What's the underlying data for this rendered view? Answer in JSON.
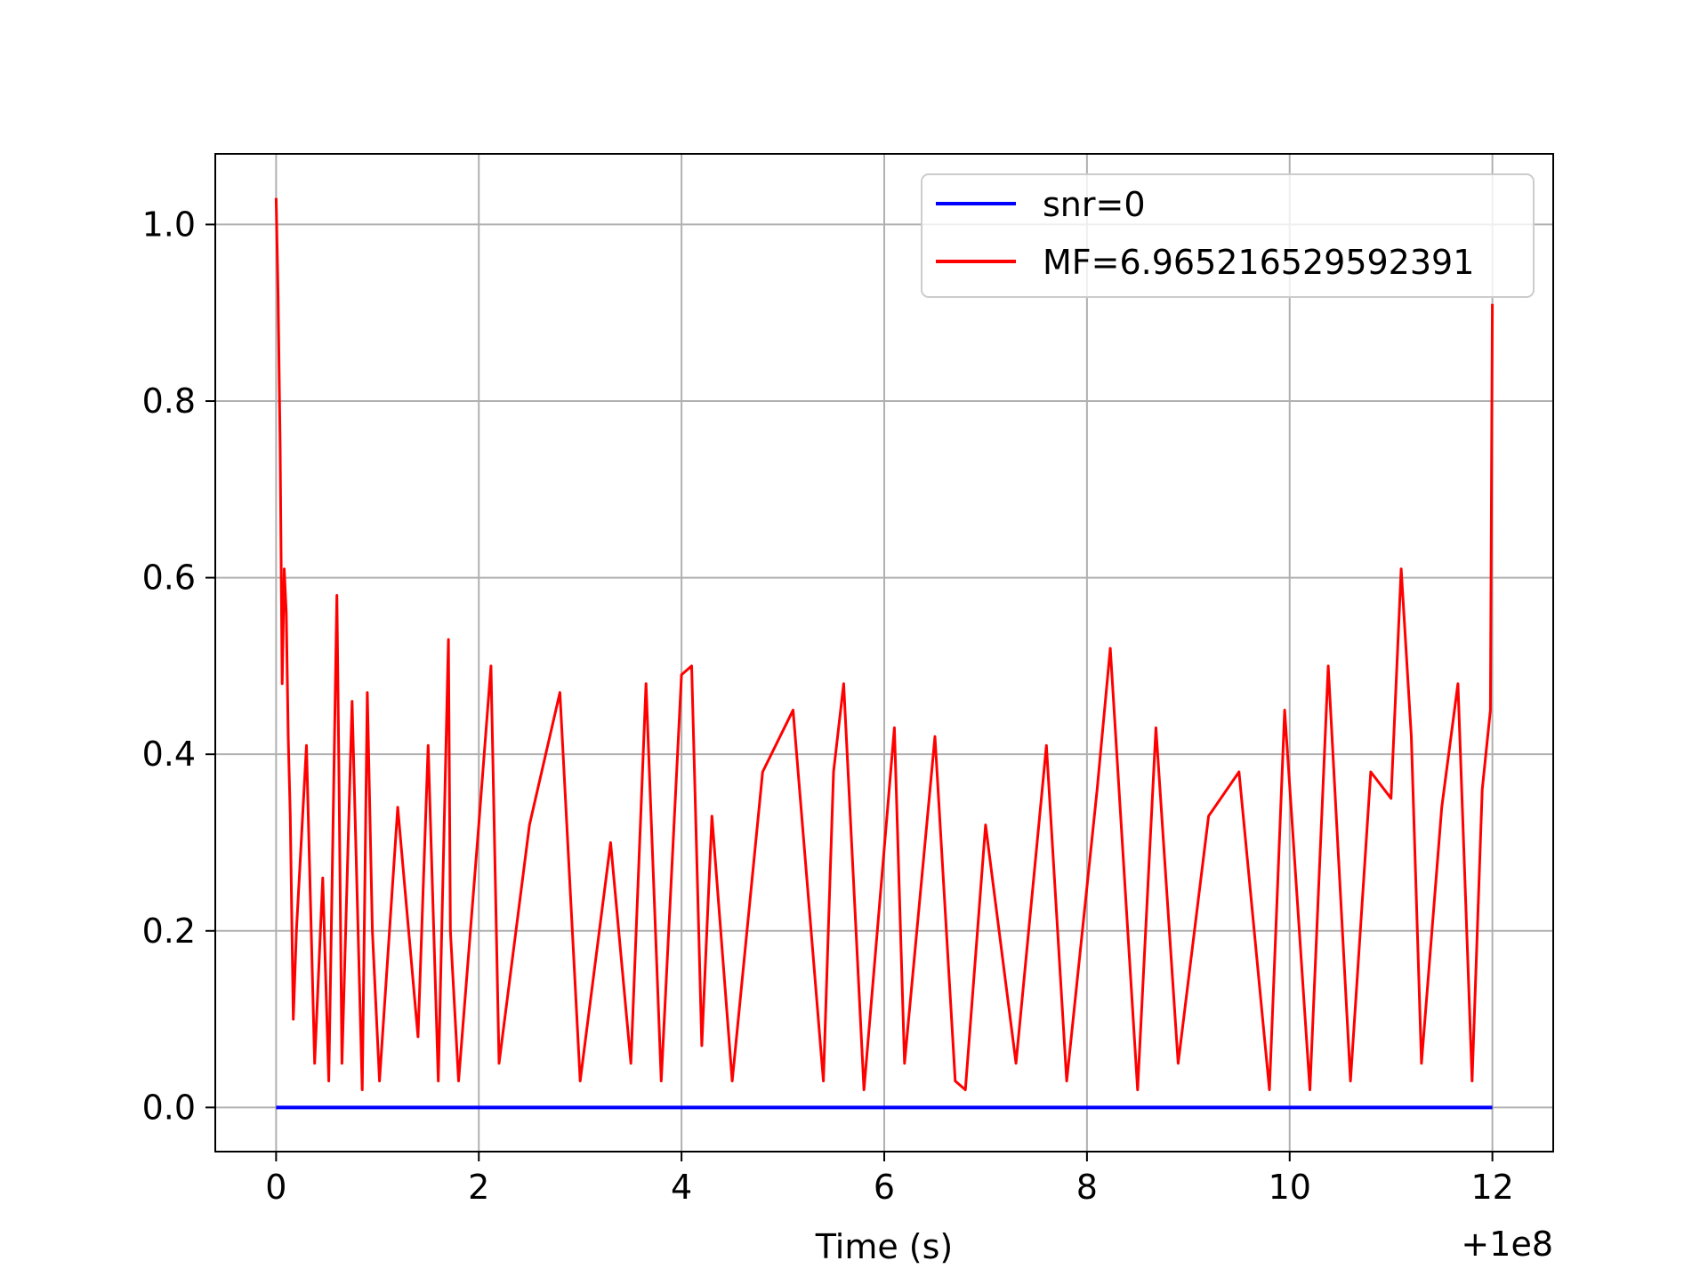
{
  "chart_data": {
    "type": "line",
    "title": "",
    "xlabel": "Time (s)",
    "ylabel": "",
    "x_offset_label": "+1e8",
    "xlim": [
      -0.6,
      12.6
    ],
    "ylim": [
      -0.05,
      1.08
    ],
    "x_ticks": [
      0,
      2,
      4,
      6,
      8,
      10,
      12
    ],
    "x_tick_labels": [
      "0",
      "2",
      "4",
      "6",
      "8",
      "10",
      "12"
    ],
    "y_ticks": [
      0.0,
      0.2,
      0.4,
      0.6,
      0.8,
      1.0
    ],
    "y_tick_labels": [
      "0.0",
      "0.2",
      "0.4",
      "0.6",
      "0.8",
      "1.0"
    ],
    "grid": true,
    "legend_position": "top-right",
    "series": [
      {
        "name": "snr=0",
        "color": "#0000ff",
        "x": [
          0,
          12
        ],
        "y": [
          0,
          0
        ]
      },
      {
        "name": "MF=6.965216529592391",
        "color": "#ff0000",
        "x": [
          0,
          0.02,
          0.04,
          0.06,
          0.08,
          0.1,
          0.12,
          0.14,
          0.17,
          0.2,
          0.3,
          0.38,
          0.46,
          0.52,
          0.6,
          0.62,
          0.65,
          0.75,
          0.85,
          0.9,
          0.95,
          1.02,
          1.2,
          1.4,
          1.5,
          1.6,
          1.7,
          1.72,
          1.8,
          2.0,
          2.12,
          2.2,
          2.5,
          2.8,
          3.0,
          3.3,
          3.5,
          3.65,
          3.8,
          4.0,
          4.1,
          4.2,
          4.3,
          4.5,
          4.8,
          5.1,
          5.4,
          5.5,
          5.6,
          5.8,
          6.1,
          6.2,
          6.5,
          6.7,
          6.8,
          7.0,
          7.3,
          7.6,
          7.8,
          8.1,
          8.23,
          8.5,
          8.68,
          8.9,
          9.2,
          9.5,
          9.8,
          9.95,
          10.2,
          10.38,
          10.6,
          10.8,
          11.0,
          11.1,
          11.2,
          11.3,
          11.5,
          11.66,
          11.8,
          11.9,
          11.98,
          12.0
        ],
        "y": [
          1.03,
          0.92,
          0.75,
          0.48,
          0.61,
          0.56,
          0.42,
          0.33,
          0.1,
          0.2,
          0.41,
          0.05,
          0.26,
          0.03,
          0.58,
          0.38,
          0.05,
          0.46,
          0.02,
          0.47,
          0.2,
          0.03,
          0.34,
          0.08,
          0.41,
          0.03,
          0.53,
          0.2,
          0.03,
          0.32,
          0.5,
          0.05,
          0.32,
          0.47,
          0.03,
          0.3,
          0.05,
          0.48,
          0.03,
          0.49,
          0.5,
          0.07,
          0.33,
          0.03,
          0.38,
          0.45,
          0.03,
          0.38,
          0.48,
          0.02,
          0.43,
          0.05,
          0.42,
          0.03,
          0.02,
          0.32,
          0.05,
          0.41,
          0.03,
          0.36,
          0.52,
          0.02,
          0.43,
          0.05,
          0.33,
          0.38,
          0.02,
          0.45,
          0.02,
          0.5,
          0.03,
          0.38,
          0.35,
          0.61,
          0.42,
          0.05,
          0.34,
          0.48,
          0.03,
          0.36,
          0.45,
          0.91
        ]
      }
    ]
  }
}
